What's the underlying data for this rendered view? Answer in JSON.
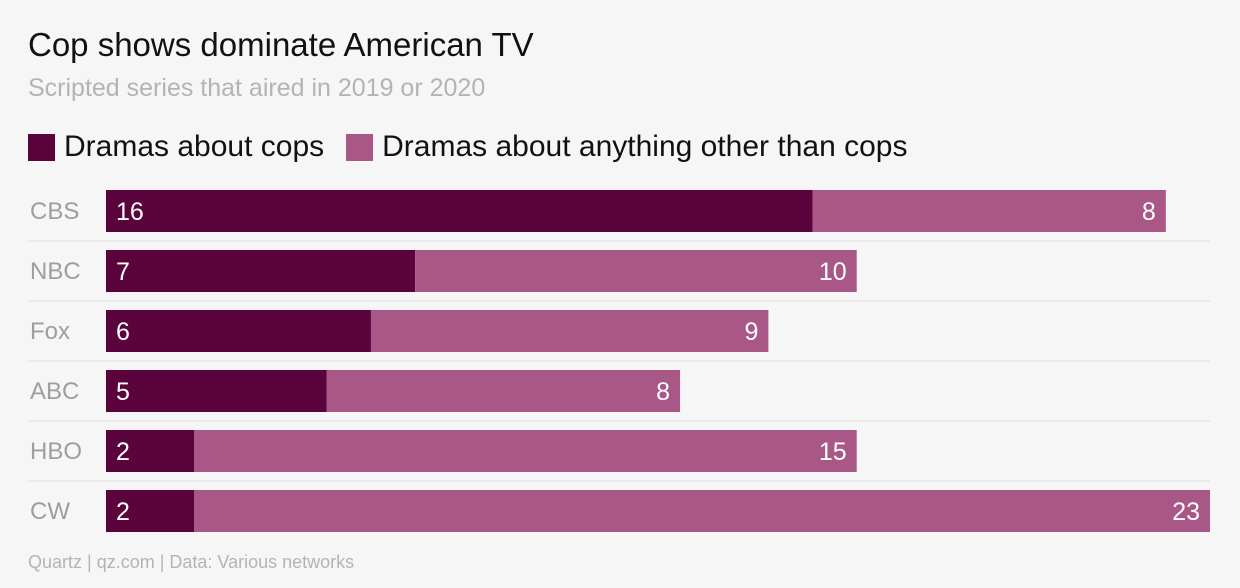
{
  "title": "Cop shows dominate American TV",
  "subtitle": "Scripted series that aired in 2019 or 2020",
  "source": "Quartz | qz.com | Data: Various networks",
  "colors": {
    "cops": "#5b033c",
    "other": "#a95787",
    "gridline": "#dedede",
    "category_text": "#9e9e9e",
    "value_text": "#ffffff"
  },
  "chart_data": {
    "type": "bar",
    "orientation": "horizontal",
    "stacked": true,
    "categories": [
      "CBS",
      "NBC",
      "Fox",
      "ABC",
      "HBO",
      "CW"
    ],
    "series": [
      {
        "name": "Dramas about cops",
        "values": [
          16,
          7,
          6,
          5,
          2,
          2
        ]
      },
      {
        "name": "Dramas about anything other than cops",
        "values": [
          8,
          10,
          9,
          8,
          15,
          23
        ]
      }
    ],
    "xlim": [
      0,
      25
    ],
    "legend": "top-left",
    "grid": false
  }
}
